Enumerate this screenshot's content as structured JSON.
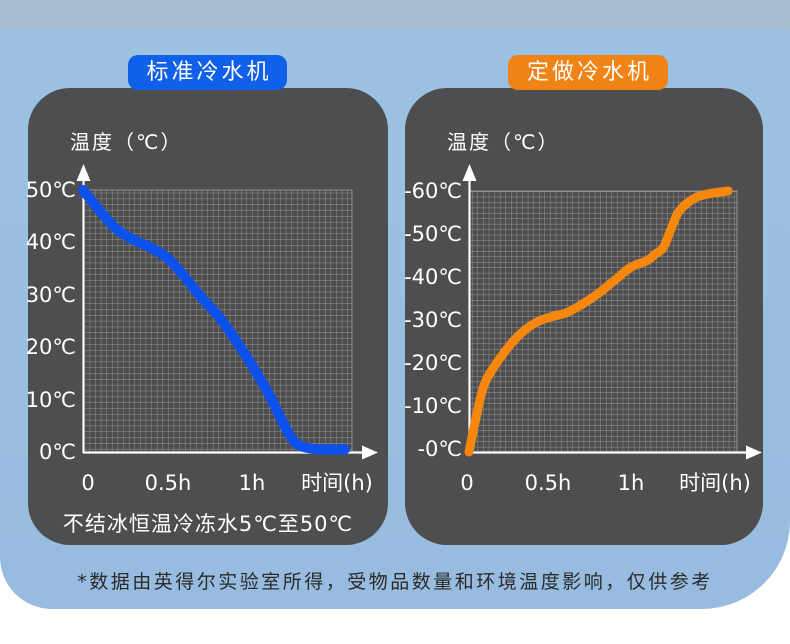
{
  "page": {
    "footnote": "*数据由英得尔实验室所得，受物品数量和环境温度影响，仅供参考"
  },
  "colors": {
    "background_blue": "#9bbfe0",
    "panel_gray": "#4e4e50",
    "grid_line": "rgba(255,255,255,0.42)",
    "axis_white": "#ffffff",
    "standard_blue": "#1160e9",
    "standard_curve_blue": "#0c51ec",
    "custom_orange": "#f08315",
    "custom_curve_orange": "#f5870e",
    "footnote_text": "#2b2b2b"
  },
  "chart_data": [
    {
      "type": "line",
      "title": "标准冷水机",
      "y_axis_title": "温度（℃）",
      "x_axis_title": "时间(h)",
      "y_tick_labels": [
        "50℃",
        "40℃",
        "30℃",
        "20℃",
        "10℃",
        "0℃"
      ],
      "x_tick_labels": [
        "0",
        "0.5h",
        "1h",
        "时间(h)"
      ],
      "caption": "不结冰恒温冷冻水5℃至50℃",
      "badge_color": "#1160e9",
      "line_color": "#0c51ec",
      "grid": true,
      "ylim": [
        0,
        50
      ],
      "xlim_hours": [
        0,
        1.6
      ],
      "x_hours": [
        0,
        0.1,
        0.2,
        0.3,
        0.4,
        0.5,
        0.6,
        0.7,
        0.8,
        0.9,
        1.0,
        1.1,
        1.2,
        1.25,
        1.3,
        1.4,
        1.55
      ],
      "y_temps_c": [
        50,
        46,
        42.5,
        40.5,
        39,
        37,
        33.5,
        29.5,
        26,
        21.5,
        16.5,
        11,
        4.5,
        2,
        1,
        0.5,
        0.5
      ]
    },
    {
      "type": "line",
      "title": "定做冷水机",
      "y_axis_title": "温度（℃）",
      "x_axis_title": "时间(h)",
      "y_tick_labels": [
        "-60℃",
        "-50℃",
        "-40℃",
        "-30℃",
        "-20℃",
        "-10℃",
        "-0℃"
      ],
      "x_tick_labels": [
        "0",
        "0.5h",
        "1h",
        "时间(h)"
      ],
      "caption": "",
      "badge_color": "#f08315",
      "line_color": "#f5870e",
      "grid": true,
      "ylim": [
        0,
        -60
      ],
      "xlim_hours": [
        0,
        1.6
      ],
      "x_hours": [
        0,
        0.05,
        0.1,
        0.2,
        0.3,
        0.4,
        0.5,
        0.6,
        0.7,
        0.8,
        0.9,
        1.0,
        1.1,
        1.15,
        1.2,
        1.25,
        1.3,
        1.4,
        1.5,
        1.6
      ],
      "y_temps_c": [
        0,
        -9,
        -16,
        -22,
        -26.5,
        -29.5,
        -31,
        -32,
        -34,
        -36.5,
        -39.5,
        -42.5,
        -44,
        -45.5,
        -47,
        -51.5,
        -55.5,
        -58.5,
        -59.5,
        -60
      ]
    }
  ]
}
